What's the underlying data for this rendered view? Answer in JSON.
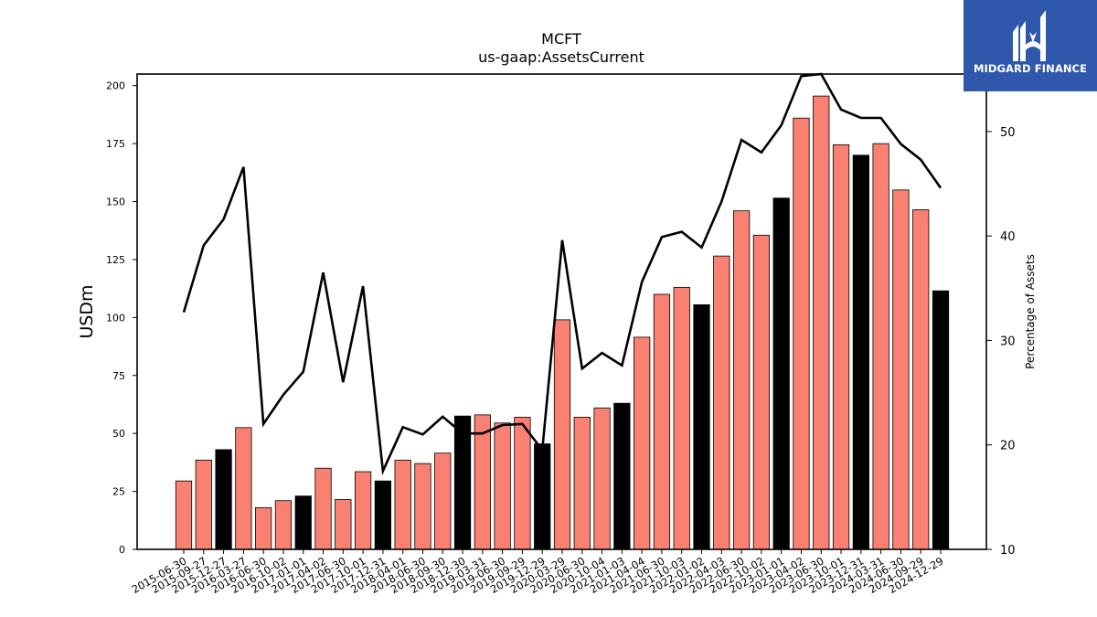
{
  "chart_data": {
    "type": "bar",
    "title": "MCFT",
    "subtitle": "us-gaap:AssetsCurrent",
    "ylabel": "USDm",
    "y2label": "Percentage of Assets",
    "ylim": [
      0,
      205
    ],
    "y2lim": [
      10,
      55.5
    ],
    "yticks": [
      0,
      25,
      50,
      75,
      100,
      125,
      150,
      175,
      200
    ],
    "y2ticks": [
      10,
      20,
      30,
      40,
      50
    ],
    "categories": [
      "2015-06-30",
      "2015-09-27",
      "2015-12-27",
      "2016-03-27",
      "2016-06-30",
      "2016-10-02",
      "2017-01-01",
      "2017-04-02",
      "2017-06-30",
      "2017-10-01",
      "2017-12-31",
      "2018-04-01",
      "2018-06-30",
      "2018-09-30",
      "2018-12-30",
      "2019-03-31",
      "2019-06-30",
      "2019-09-29",
      "2019-12-29",
      "2020-03-29",
      "2020-06-30",
      "2020-10-04",
      "2021-01-03",
      "2021-04-04",
      "2021-06-30",
      "2021-10-03",
      "2022-01-02",
      "2022-04-03",
      "2022-06-30",
      "2022-10-02",
      "2023-01-01",
      "2023-04-02",
      "2023-06-30",
      "2023-10-01",
      "2023-12-31",
      "2024-03-31",
      "2024-06-30",
      "2024-09-29",
      "2024-12-29"
    ],
    "series": [
      {
        "type": "bar",
        "values": [
          29.5,
          38.5,
          43,
          52.5,
          18,
          21,
          23,
          35,
          21.5,
          33.5,
          29.5,
          38.5,
          37,
          41.5,
          57.5,
          58,
          54.5,
          57,
          45.5,
          99,
          57,
          61,
          63,
          91.5,
          110,
          113,
          105.5,
          126.5,
          146,
          135.5,
          151.5,
          186,
          195.5,
          174.5,
          170,
          175,
          155,
          146.5,
          111.5
        ],
        "colors": [
          "#fa8072",
          "#fa8072",
          "#000000",
          "#fa8072",
          "#fa8072",
          "#fa8072",
          "#000000",
          "#fa8072",
          "#fa8072",
          "#fa8072",
          "#000000",
          "#fa8072",
          "#fa8072",
          "#fa8072",
          "#000000",
          "#fa8072",
          "#fa8072",
          "#fa8072",
          "#000000",
          "#fa8072",
          "#fa8072",
          "#fa8072",
          "#000000",
          "#fa8072",
          "#fa8072",
          "#fa8072",
          "#000000",
          "#fa8072",
          "#fa8072",
          "#fa8072",
          "#000000",
          "#fa8072",
          "#fa8072",
          "#fa8072",
          "#000000",
          "#fa8072",
          "#fa8072",
          "#fa8072",
          "#000000"
        ]
      },
      {
        "type": "line",
        "axis": "right",
        "color": "#000000",
        "values": [
          32.7,
          39.1,
          41.6,
          46.6,
          22,
          24.8,
          27,
          36.5,
          26,
          35.2,
          17.5,
          21.7,
          21,
          22.7,
          21.1,
          21.1,
          21.9,
          22,
          19.5,
          39.6,
          27.3,
          28.8,
          27.6,
          35.6,
          39.9,
          40.4,
          38.9,
          43.3,
          49.2,
          48,
          50.6,
          55.3,
          55.5,
          52.1,
          51.3,
          51.3,
          48.8,
          47.3,
          44.6
        ]
      }
    ],
    "grid": false,
    "legend": "none"
  },
  "logo": {
    "text": "MIDGARD FINANCE",
    "background": "#2f58ad",
    "icon": "midgard-logo-icon"
  }
}
